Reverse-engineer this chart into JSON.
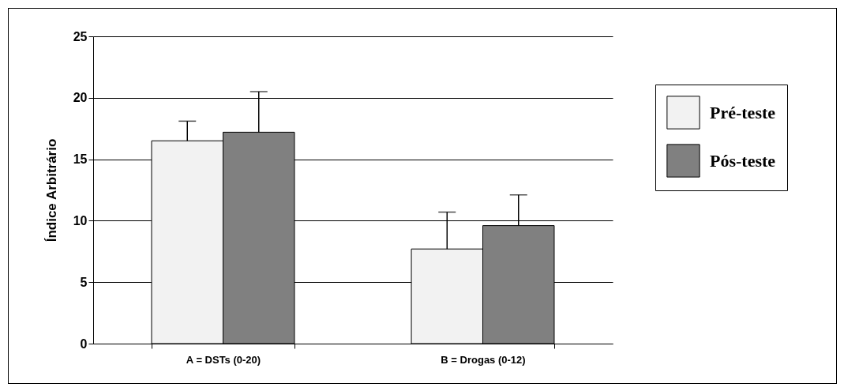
{
  "chart_data": {
    "type": "bar",
    "ylabel": "Índice Arbitrário",
    "categories": [
      "A = DSTs (0-20)",
      "B = Drogas (0-12)"
    ],
    "series": [
      {
        "name": "Pré-teste",
        "color": "#f2f2f2",
        "values": [
          16.5,
          7.7
        ],
        "errors": [
          [
            16.5,
            18.1
          ],
          [
            7.7,
            10.7
          ]
        ]
      },
      {
        "name": "Pós-teste",
        "color": "#808080",
        "values": [
          17.2,
          9.6
        ],
        "errors": [
          [
            17.2,
            20.5
          ],
          [
            9.6,
            12.1
          ]
        ]
      }
    ],
    "ylim": [
      0,
      25
    ],
    "yticks": [
      0,
      5,
      10,
      15,
      20,
      25
    ],
    "grid": "y",
    "legend": "right"
  }
}
